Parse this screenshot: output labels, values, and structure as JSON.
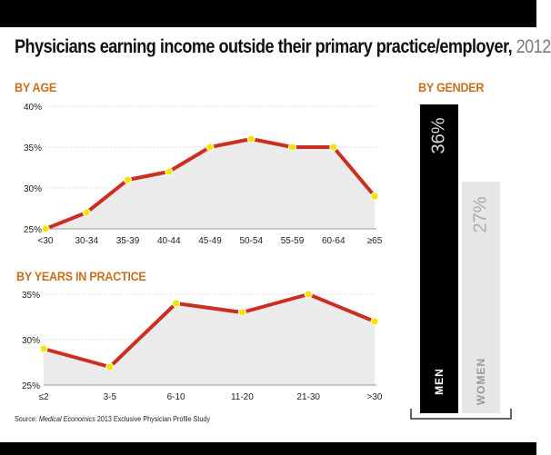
{
  "header": {
    "title": "Physicians earning income outside their primary practice/employer,",
    "year": "2012"
  },
  "colors": {
    "line": "#cc2e1f",
    "marker": "#f5e400",
    "area_fill": "#ebebeb",
    "accent_label": "#c9701e",
    "men_bar": "#000000",
    "women_bar": "#e6e6e6"
  },
  "source": {
    "prefix": "Source:",
    "publication": "Medical Economics",
    "rest": "2013 Exclusive Physician Profile Study"
  },
  "chart_data": [
    {
      "type": "line",
      "title": "BY AGE",
      "categories": [
        "<30",
        "30-34",
        "35-39",
        "40-44",
        "45-49",
        "50-54",
        "55-59",
        "60-64",
        "≥65"
      ],
      "values": [
        25,
        27,
        31,
        32,
        35,
        36,
        35,
        35,
        29
      ],
      "yticks": [
        "40%",
        "35%",
        "30%",
        "25%"
      ],
      "ylim": [
        25,
        40
      ],
      "grid": true,
      "area_fill": true
    },
    {
      "type": "line",
      "title": "BY YEARS IN PRACTICE",
      "categories": [
        "≤2",
        "3-5",
        "6-10",
        "11-20",
        "21-30",
        ">30"
      ],
      "values": [
        29,
        27,
        34,
        33,
        35,
        32
      ],
      "yticks": [
        "35%",
        "30%",
        "25%"
      ],
      "ylim": [
        25,
        35
      ],
      "grid": true,
      "area_fill": true
    },
    {
      "type": "bar",
      "title": "BY GENDER",
      "categories": [
        "MEN",
        "WOMEN"
      ],
      "values": [
        36,
        27
      ],
      "value_labels": [
        "36%",
        "27%"
      ]
    }
  ]
}
